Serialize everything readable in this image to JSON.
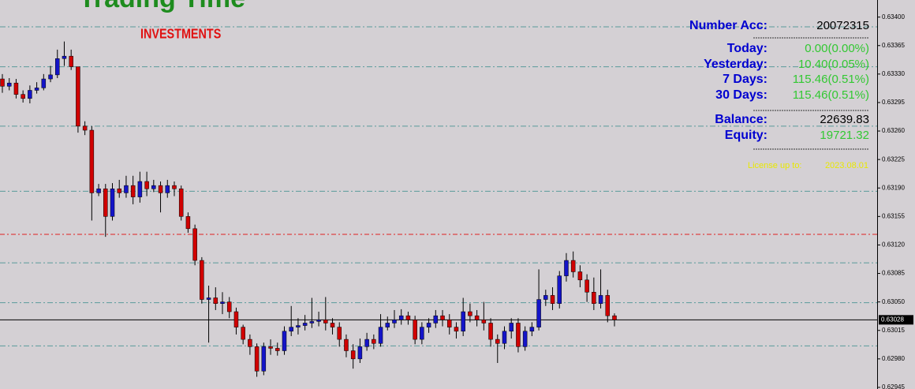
{
  "chart_data": {
    "type": "candlestick",
    "open": [
      0.63324,
      0.63315,
      0.63319,
      0.63305,
      0.633,
      0.6331,
      0.63313,
      0.63324,
      0.63329,
      0.63349,
      0.63352,
      0.63339,
      0.63266,
      0.63261,
      0.63184,
      0.63189,
      0.63155,
      0.63189,
      0.63184,
      0.63193,
      0.63179,
      0.63198,
      0.63189,
      0.63193,
      0.63184,
      0.63193,
      0.63189,
      0.63155,
      0.6314,
      0.63101,
      0.63053,
      0.63055,
      0.63048,
      0.6305,
      0.63038,
      0.63019,
      0.63004,
      0.62995,
      0.62965,
      0.62995,
      0.62993,
      0.6299,
      0.63014,
      0.63019,
      0.63021,
      0.63024,
      0.63026,
      0.63028,
      0.63024,
      0.63019,
      0.63004,
      0.6299,
      0.6298,
      0.62995,
      0.63004,
      0.62999,
      0.63019,
      0.63024,
      0.63028,
      0.63033,
      0.63028,
      0.63004,
      0.63019,
      0.63024,
      0.63033,
      0.63028,
      0.63019,
      0.63014,
      0.63038,
      0.63033,
      0.63028,
      0.63024,
      0.63004,
      0.62999,
      0.63014,
      0.63024,
      0.62995,
      0.63014,
      0.63019,
      0.63053,
      0.63058,
      0.63048,
      0.63082,
      0.63101,
      0.63087,
      0.63077,
      0.63062,
      0.63048,
      0.63058,
      0.63033
    ],
    "high": [
      0.6333,
      0.63325,
      0.63324,
      0.6331,
      0.63316,
      0.6332,
      0.6333,
      0.6334,
      0.6336,
      0.6337,
      0.6336,
      0.63336,
      0.63272,
      0.63266,
      0.63195,
      0.63195,
      0.63196,
      0.632,
      0.63205,
      0.63205,
      0.6321,
      0.6321,
      0.632,
      0.63198,
      0.632,
      0.63198,
      0.63193,
      0.6316,
      0.63145,
      0.63105,
      0.6307,
      0.63068,
      0.63062,
      0.63056,
      0.63043,
      0.63022,
      0.6301,
      0.62999,
      0.63,
      0.63004,
      0.63,
      0.6302,
      0.63045,
      0.6303,
      0.63034,
      0.63055,
      0.63038,
      0.63056,
      0.6303,
      0.63025,
      0.6301,
      0.62998,
      0.63005,
      0.63012,
      0.6301,
      0.63035,
      0.63032,
      0.6304,
      0.63041,
      0.63038,
      0.63033,
      0.63025,
      0.6303,
      0.6304,
      0.6304,
      0.63035,
      0.63025,
      0.63055,
      0.63048,
      0.6304,
      0.6305,
      0.6303,
      0.6301,
      0.6302,
      0.6303,
      0.6303,
      0.6302,
      0.63025,
      0.6309,
      0.63065,
      0.63068,
      0.63088,
      0.6311,
      0.63112,
      0.63095,
      0.63084,
      0.6308,
      0.6309,
      0.63065,
      0.63036
    ],
    "low": [
      0.63307,
      0.6331,
      0.633,
      0.63295,
      0.63294,
      0.63306,
      0.6331,
      0.6332,
      0.63325,
      0.6334,
      0.63335,
      0.63258,
      0.63255,
      0.6315,
      0.6318,
      0.6313,
      0.6315,
      0.63178,
      0.63178,
      0.6317,
      0.63172,
      0.6318,
      0.63185,
      0.6316,
      0.63178,
      0.6318,
      0.6315,
      0.63135,
      0.63095,
      0.63048,
      0.63,
      0.6304,
      0.63035,
      0.6303,
      0.6301,
      0.62998,
      0.62985,
      0.62958,
      0.6296,
      0.62985,
      0.62984,
      0.62985,
      0.63008,
      0.6301,
      0.63015,
      0.63018,
      0.6302,
      0.63015,
      0.6301,
      0.62995,
      0.62982,
      0.62968,
      0.62975,
      0.6299,
      0.62992,
      0.62995,
      0.63015,
      0.63018,
      0.63022,
      0.63022,
      0.62998,
      0.62998,
      0.63012,
      0.63018,
      0.6302,
      0.6301,
      0.63005,
      0.63008,
      0.63025,
      0.6302,
      0.63015,
      0.62995,
      0.62975,
      0.62992,
      0.63005,
      0.62988,
      0.6299,
      0.63008,
      0.63015,
      0.63045,
      0.6304,
      0.63042,
      0.63075,
      0.6308,
      0.63068,
      0.6305,
      0.6304,
      0.63042,
      0.63025,
      0.6302
    ],
    "close": [
      0.63315,
      0.63319,
      0.63305,
      0.633,
      0.6331,
      0.63313,
      0.63324,
      0.63329,
      0.63349,
      0.63352,
      0.63339,
      0.63266,
      0.63261,
      0.63184,
      0.63189,
      0.63155,
      0.63189,
      0.63184,
      0.63193,
      0.63179,
      0.63198,
      0.63189,
      0.63193,
      0.63184,
      0.63193,
      0.63189,
      0.63155,
      0.6314,
      0.63101,
      0.63053,
      0.63055,
      0.63048,
      0.6305,
      0.63038,
      0.63019,
      0.63004,
      0.62995,
      0.62965,
      0.62995,
      0.62993,
      0.6299,
      0.63014,
      0.63019,
      0.63021,
      0.63024,
      0.63026,
      0.63028,
      0.63024,
      0.63019,
      0.63004,
      0.6299,
      0.6298,
      0.62995,
      0.63004,
      0.62999,
      0.63019,
      0.63024,
      0.63028,
      0.63033,
      0.63028,
      0.63004,
      0.63019,
      0.63024,
      0.63033,
      0.63028,
      0.63019,
      0.63014,
      0.63038,
      0.63033,
      0.63028,
      0.63024,
      0.63004,
      0.62999,
      0.63014,
      0.63024,
      0.62995,
      0.63014,
      0.63019,
      0.63053,
      0.63058,
      0.63048,
      0.63082,
      0.63101,
      0.63087,
      0.63077,
      0.63062,
      0.63048,
      0.63058,
      0.63033,
      0.63028
    ],
    "up_color": "#1414c8",
    "down_color": "#d00000",
    "ylim": [
      0.62943,
      0.63421
    ],
    "yticks": [
      {
        "value": 0.634,
        "label": "0.63400"
      },
      0.63365,
      {
        "value": 0.6333,
        "label": "0.63330"
      },
      0.63295,
      {
        "value": 0.6326,
        "label": "0.63260"
      },
      0.63225,
      {
        "value": 0.6319,
        "label": "0.63190"
      },
      0.63155,
      {
        "value": 0.6312,
        "label": "0.63120"
      },
      0.63085,
      {
        "value": 0.6305,
        "label": "0.63050"
      },
      0.63015,
      {
        "value": 0.6298,
        "label": "0.62980"
      },
      0.62945
    ],
    "levels": [
      0.63388,
      0.63339,
      0.63266,
      0.63186,
      0.63098,
      0.63049,
      0.62996
    ],
    "level_color": "#5a9a9a",
    "alert_level": 0.63133,
    "alert_color": "#e02020",
    "current_price": 0.63028
  },
  "branding": {
    "title": "Trading Time",
    "subtitle": "INVESTMENTS"
  },
  "account": {
    "rows": [
      {
        "label": "Number Acc:",
        "value": "20072315",
        "color": "#000000"
      },
      {
        "label": "Today:",
        "value": "0.00(0.00%)",
        "color": "#32c832"
      },
      {
        "label": "Yesterday:",
        "value": "10.40(0.05%)",
        "color": "#32c832"
      },
      {
        "label": "7 Days:",
        "value": "115.46(0.51%)",
        "color": "#32c832"
      },
      {
        "label": "30 Days:",
        "value": "115.46(0.51%)",
        "color": "#32c832"
      },
      {
        "label": "Balance:",
        "value": "22639.83",
        "color": "#000000"
      },
      {
        "label": "Equity:",
        "value": "19721.32",
        "color": "#32c832"
      }
    ]
  },
  "license": {
    "label": "License up to:",
    "date": "2023.08.01"
  }
}
